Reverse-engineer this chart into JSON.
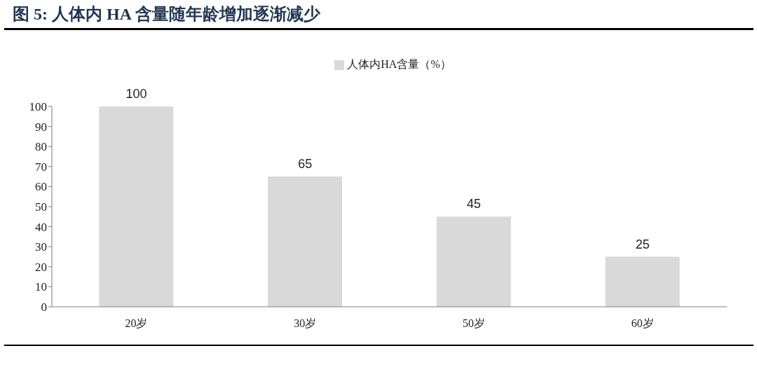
{
  "chart_data": {
    "type": "bar",
    "title": "图 5: 人体内 HA 含量随年龄增加逐渐减少",
    "categories": [
      "20岁",
      "30岁",
      "50岁",
      "60岁"
    ],
    "series": [
      {
        "name": "人体内HA含量（%）",
        "color": "#d9d9d9",
        "values": [
          100,
          65,
          45,
          25
        ]
      }
    ],
    "ylim": [
      0,
      100
    ],
    "yticks": [
      0,
      10,
      20,
      30,
      40,
      50,
      60,
      70,
      80,
      90,
      100
    ],
    "data_labels": true,
    "legend": "top"
  }
}
